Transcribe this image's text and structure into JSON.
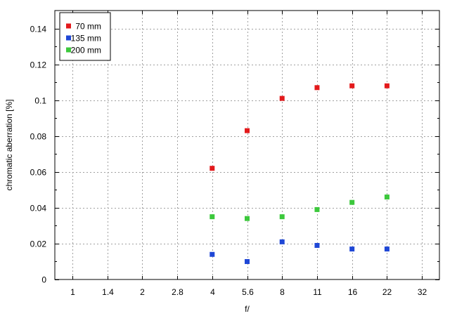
{
  "chart_data": {
    "type": "scatter",
    "xlabel": "f/",
    "ylabel": "chromatic  aberration [%]",
    "x_tick_labels": [
      "1",
      "1.4",
      "2",
      "2.8",
      "4",
      "5.6",
      "8",
      "11",
      "16",
      "22",
      "32"
    ],
    "ylim": [
      0,
      0.15
    ],
    "y_ticks": [
      0,
      0.02,
      0.04,
      0.06,
      0.08,
      0.1,
      0.12,
      0.14
    ],
    "y_tick_labels": [
      "0",
      "0.02",
      "0.04",
      "0.06",
      "0.08",
      "0.1",
      "0.12",
      "0.14"
    ],
    "grid": true,
    "legend_position": "top-left",
    "series": [
      {
        "name": "70 mm",
        "color": "#e31a1c",
        "points": [
          {
            "x": "4",
            "y": 0.062
          },
          {
            "x": "5.6",
            "y": 0.083
          },
          {
            "x": "8",
            "y": 0.101
          },
          {
            "x": "11",
            "y": 0.107
          },
          {
            "x": "16",
            "y": 0.108
          },
          {
            "x": "22",
            "y": 0.108
          }
        ]
      },
      {
        "name": "135 mm",
        "color": "#1f47d6",
        "points": [
          {
            "x": "4",
            "y": 0.014
          },
          {
            "x": "5.6",
            "y": 0.01
          },
          {
            "x": "8",
            "y": 0.021
          },
          {
            "x": "11",
            "y": 0.019
          },
          {
            "x": "16",
            "y": 0.017
          },
          {
            "x": "22",
            "y": 0.017
          }
        ]
      },
      {
        "name": "200 mm",
        "color": "#3cc83c",
        "points": [
          {
            "x": "4",
            "y": 0.035
          },
          {
            "x": "5.6",
            "y": 0.034
          },
          {
            "x": "8",
            "y": 0.035
          },
          {
            "x": "11",
            "y": 0.039
          },
          {
            "x": "16",
            "y": 0.043
          },
          {
            "x": "22",
            "y": 0.046
          }
        ]
      }
    ]
  }
}
